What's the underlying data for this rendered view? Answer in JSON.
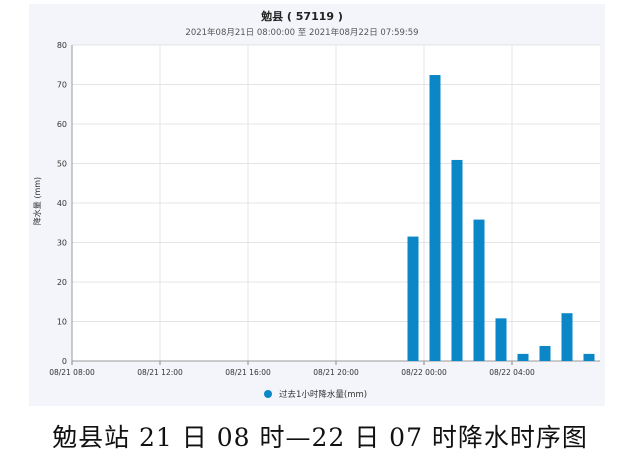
{
  "chart_data": {
    "type": "bar",
    "title": "勉县 ( 57119 )",
    "subtitle": "2021年08月21日 08:00:00 至 2021年08月22日 07:59:59",
    "ylabel": "降水量 (mm)",
    "xlabel": "",
    "ylim": [
      0,
      80
    ],
    "yticks": [
      0,
      10,
      20,
      30,
      40,
      50,
      60,
      70,
      80
    ],
    "x_range": [
      0,
      24
    ],
    "xticks": [
      {
        "x": 0,
        "label": "08/21 08:00"
      },
      {
        "x": 4,
        "label": "08/21 12:00"
      },
      {
        "x": 8,
        "label": "08/21 16:00"
      },
      {
        "x": 12,
        "label": "08/21 20:00"
      },
      {
        "x": 16,
        "label": "08/22 00:00"
      },
      {
        "x": 20,
        "label": "08/22 04:00"
      }
    ],
    "grid": true,
    "legend_position": "bottom",
    "series": [
      {
        "name": "过去1小时降水量(mm)",
        "color": "#0b87c7",
        "x": [
          15,
          16,
          17,
          18,
          19,
          20,
          21,
          22,
          23
        ],
        "values": [
          31.5,
          72.4,
          50.9,
          35.8,
          10.8,
          1.8,
          3.8,
          12.1,
          1.8
        ]
      }
    ]
  },
  "caption": "勉县站 21 日 08 时—22 日 07 时降水时序图"
}
